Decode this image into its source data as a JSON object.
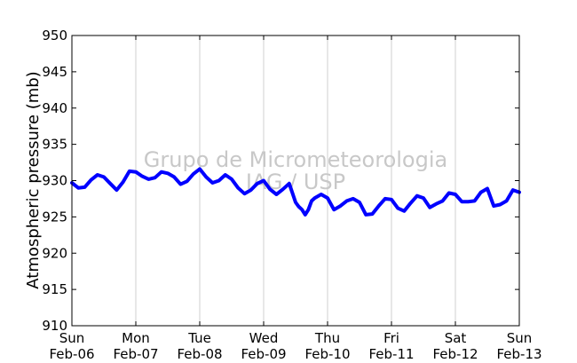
{
  "chart_data": {
    "type": "line",
    "title": "",
    "xlabel": "",
    "ylabel": "Atmospheric pressure (mb)",
    "ylim": [
      910,
      950
    ],
    "yticks": [
      910,
      915,
      920,
      925,
      930,
      935,
      940,
      945,
      950
    ],
    "xlim": [
      0,
      7
    ],
    "xticks": [
      {
        "day": "Sun",
        "date": "Feb-06"
      },
      {
        "day": "Mon",
        "date": "Feb-07"
      },
      {
        "day": "Tue",
        "date": "Feb-08"
      },
      {
        "day": "Wed",
        "date": "Feb-09"
      },
      {
        "day": "Thu",
        "date": "Feb-10"
      },
      {
        "day": "Fri",
        "date": "Feb-11"
      },
      {
        "day": "Sat",
        "date": "Feb-12"
      },
      {
        "day": "Sun",
        "date": "Feb-13"
      }
    ],
    "grid": "vertical",
    "watermark": [
      "Grupo de Micrometeorologia",
      "IAG / USP"
    ],
    "series": [
      {
        "color": "#0000ff",
        "x": [
          0,
          0.1,
          0.2,
          0.3,
          0.4,
          0.5,
          0.6,
          0.7,
          0.8,
          0.9,
          1.0,
          1.1,
          1.2,
          1.3,
          1.4,
          1.5,
          1.6,
          1.7,
          1.8,
          1.9,
          2.0,
          2.1,
          2.2,
          2.3,
          2.4,
          2.5,
          2.6,
          2.7,
          2.8,
          2.9,
          3.0,
          3.1,
          3.2,
          3.3,
          3.4,
          3.5,
          3.55,
          3.6,
          3.65,
          3.7,
          3.75,
          3.8,
          3.9,
          4.0,
          4.1,
          4.2,
          4.3,
          4.4,
          4.5,
          4.6,
          4.7,
          4.8,
          4.9,
          5.0,
          5.1,
          5.2,
          5.3,
          5.4,
          5.5,
          5.6,
          5.7,
          5.8,
          5.9,
          6.0,
          6.1,
          6.2,
          6.3,
          6.4,
          6.5,
          6.6,
          6.7,
          6.8,
          6.9,
          7.0
        ],
        "y": [
          929.7,
          929.0,
          929.1,
          930.1,
          930.8,
          930.5,
          929.6,
          928.7,
          929.8,
          931.3,
          931.2,
          930.6,
          930.2,
          930.4,
          931.2,
          931.0,
          930.5,
          929.5,
          929.9,
          930.9,
          931.6,
          930.5,
          929.7,
          930.0,
          930.8,
          930.2,
          929.0,
          928.2,
          928.7,
          929.6,
          930.0,
          928.8,
          928.1,
          928.8,
          929.6,
          927.0,
          926.4,
          926.0,
          925.3,
          926.0,
          927.2,
          927.6,
          928.1,
          927.6,
          926.0,
          926.5,
          927.2,
          927.5,
          927.0,
          925.3,
          925.4,
          926.5,
          927.5,
          927.4,
          926.2,
          925.8,
          926.9,
          927.9,
          927.6,
          926.3,
          926.8,
          927.2,
          928.3,
          928.1,
          927.1,
          927.1,
          927.2,
          928.4,
          928.9,
          926.5,
          926.7,
          927.2,
          928.7,
          928.4
        ]
      }
    ]
  }
}
